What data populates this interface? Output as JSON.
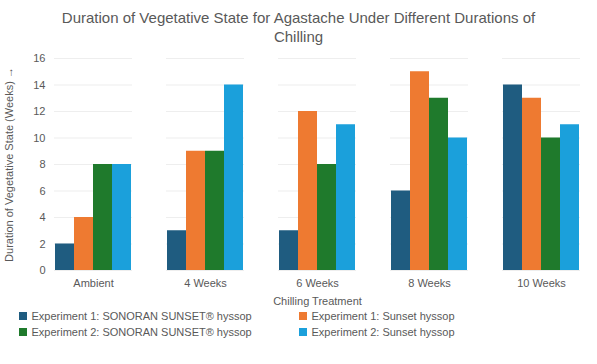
{
  "chart_data": {
    "type": "bar",
    "title": "Duration of Vegetative State for Agastache Under Different Durations of Chilling",
    "x_label": "Chilling Treatment",
    "y_label": "Duration of Vegetative State (Weeks)",
    "categories": [
      "Ambient",
      "4 Weeks",
      "6 Weeks",
      "8 Weeks",
      "10 Weeks"
    ],
    "series": [
      {
        "name": "Experiment 1: SONORAN SUNSET® hyssop",
        "color": "#1f5c80",
        "values": [
          2,
          3,
          3,
          6,
          14
        ]
      },
      {
        "name": "Experiment 1: Sunset hyssop",
        "color": "#ee7a31",
        "values": [
          4,
          9,
          12,
          15,
          13
        ]
      },
      {
        "name": "Experiment 2: SONORAN SUNSET® hyssop",
        "color": "#1f7a2c",
        "values": [
          8,
          9,
          8,
          13,
          10
        ]
      },
      {
        "name": "Experiment 2: Sunset hyssop",
        "color": "#1ba0db",
        "values": [
          8,
          14,
          11,
          10,
          11
        ]
      }
    ],
    "ylim": [
      0,
      16
    ],
    "yticks": [
      0,
      2,
      4,
      6,
      8,
      10,
      12,
      14,
      16
    ],
    "grid": true,
    "legend": "bottom"
  }
}
